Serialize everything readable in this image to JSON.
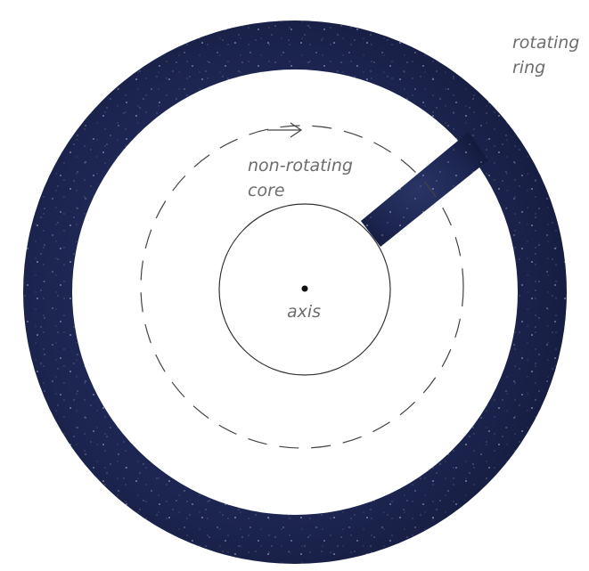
{
  "labels": {
    "ring": [
      "rotating",
      "ring"
    ],
    "core": [
      "non-rotating",
      "core"
    ],
    "axis": "axis"
  }
}
